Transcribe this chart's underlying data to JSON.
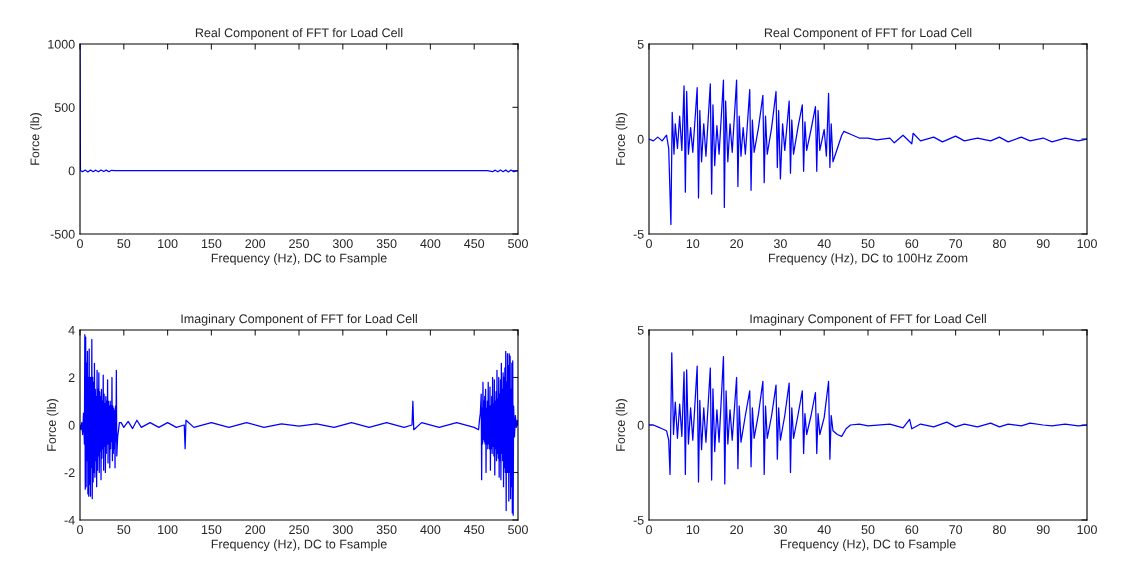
{
  "chart_data": [
    {
      "type": "line",
      "title": "Real Component of FFT for Load Cell",
      "xlabel": "Frequency (Hz), DC to Fsample",
      "ylabel": "Force (lb)",
      "xlim": [
        0,
        500
      ],
      "ylim": [
        -500,
        1000
      ],
      "xticks": [
        0,
        50,
        100,
        150,
        200,
        250,
        300,
        350,
        400,
        450,
        500
      ],
      "yticks": [
        -500,
        0,
        500,
        1000
      ],
      "x": [
        0,
        0.5,
        3,
        6,
        9,
        12,
        15,
        18,
        21,
        24,
        27,
        30,
        33,
        36,
        40,
        100,
        200,
        300,
        400,
        465,
        468,
        471,
        474,
        477,
        480,
        483,
        486,
        489,
        492,
        495,
        498,
        500
      ],
      "series": [
        {
          "color": "#0000ff",
          "values": [
            1000,
            0,
            -8,
            5,
            -10,
            6,
            -8,
            4,
            -9,
            5,
            -7,
            4,
            -8,
            3,
            0,
            0,
            0,
            0,
            0,
            0,
            -3,
            -8,
            4,
            -9,
            5,
            -8,
            6,
            -10,
            5,
            -8,
            -3,
            0
          ]
        }
      ]
    },
    {
      "type": "line",
      "title": "Real Component of FFT for Load Cell",
      "xlabel": "Frequency (Hz), DC to 100Hz Zoom",
      "ylabel": "Force (lb)",
      "xlim": [
        0,
        100
      ],
      "ylim": [
        -5,
        5
      ],
      "xticks": [
        0,
        10,
        20,
        30,
        40,
        50,
        60,
        70,
        80,
        90,
        100
      ],
      "yticks": [
        -5,
        0,
        5
      ],
      "x": [
        0,
        1,
        2,
        3,
        4,
        4.5,
        5,
        5.3,
        5.7,
        6,
        6.5,
        7,
        7.5,
        8,
        8.3,
        8.6,
        9,
        9.5,
        10,
        11,
        11.3,
        11.6,
        12,
        12.5,
        13,
        14,
        14.3,
        14.6,
        15,
        15.5,
        16,
        17,
        17.2,
        17.5,
        18,
        18.5,
        19,
        20,
        20.3,
        20.6,
        21,
        21.5,
        22,
        23,
        23.3,
        23.6,
        24,
        25,
        26,
        26.3,
        26.6,
        27,
        28,
        29,
        29.3,
        29.6,
        30,
        30.5,
        31,
        32,
        32.3,
        32.6,
        33,
        34,
        35,
        35.3,
        35.6,
        36,
        37,
        38,
        38.3,
        38.6,
        39,
        40,
        40.5,
        41,
        41.3,
        41.6,
        42,
        43,
        44,
        44.5,
        46,
        48,
        50,
        52,
        55,
        56,
        58,
        60,
        60.3,
        62,
        65,
        67,
        70,
        72,
        75,
        78,
        80,
        82,
        85,
        87,
        90,
        92,
        95,
        98,
        100
      ],
      "series": [
        {
          "color": "#0000ff",
          "values": [
            0,
            -0.1,
            0.1,
            -0.1,
            0.2,
            -0.5,
            -4.5,
            1.4,
            -0.8,
            0.8,
            -0.5,
            1.2,
            -0.6,
            2.8,
            -2.8,
            2.5,
            -0.8,
            0.6,
            -0.7,
            2.7,
            -3.1,
            1.5,
            -1.2,
            0.8,
            -0.9,
            2.9,
            -2.9,
            1.8,
            -1.4,
            0.7,
            -0.8,
            3.1,
            -3.6,
            2.0,
            -1.2,
            0.8,
            -0.7,
            3.1,
            -2.5,
            1.2,
            -0.9,
            0.6,
            -0.8,
            2.6,
            -2.7,
            1.0,
            -0.7,
            0.6,
            2.3,
            -2.3,
            1.2,
            -0.8,
            0.6,
            2.5,
            -1.5,
            1.5,
            -2.1,
            0.8,
            -0.6,
            2.0,
            -1.8,
            1.0,
            -0.8,
            0.6,
            1.8,
            -1.7,
            0.9,
            -0.6,
            0.5,
            1.7,
            -1.7,
            1.5,
            -0.6,
            0.5,
            -0.9,
            2.4,
            -1.5,
            0.8,
            -1.2,
            -0.5,
            0.2,
            0.4,
            0.25,
            0.05,
            0.05,
            -0.05,
            0.05,
            -0.2,
            0.2,
            -0.25,
            0.3,
            -0.1,
            0.1,
            -0.15,
            0.15,
            -0.1,
            0.05,
            -0.1,
            0.1,
            -0.15,
            0.1,
            -0.1,
            0.05,
            -0.15,
            0.05,
            -0.1,
            0
          ]
        }
      ]
    },
    {
      "type": "line",
      "title": "Imaginary Component of FFT for Load Cell",
      "xlabel": "Frequency (Hz), DC to Fsample",
      "ylabel": "Force (lb)",
      "xlim": [
        0,
        500
      ],
      "ylim": [
        -4,
        4
      ],
      "xticks": [
        0,
        50,
        100,
        150,
        200,
        250,
        300,
        350,
        400,
        450,
        500
      ],
      "yticks": [
        -4,
        -2,
        0,
        2,
        4
      ],
      "x": [
        0,
        1,
        2,
        3,
        4,
        5,
        5.5,
        6,
        6.5,
        7,
        7.5,
        8,
        8.5,
        9,
        9.5,
        10,
        10.5,
        11,
        11.5,
        12,
        12.5,
        13,
        13.5,
        14,
        14.5,
        15,
        15.5,
        16,
        16.5,
        17,
        17.5,
        18,
        18.5,
        19,
        19.5,
        20,
        20.5,
        21,
        21.5,
        22,
        22.5,
        23,
        23.5,
        24,
        24.5,
        25,
        25.5,
        26,
        26.5,
        27,
        27.5,
        28,
        28.5,
        29,
        29.5,
        30,
        30.5,
        31,
        31.5,
        32,
        32.5,
        33,
        33.5,
        34,
        34.5,
        35,
        35.5,
        36,
        36.5,
        37,
        37.5,
        38,
        38.5,
        39,
        39.5,
        40,
        40.5,
        41,
        41.5,
        42,
        43,
        44,
        45,
        47,
        50,
        55,
        60,
        65,
        70,
        80,
        90,
        100,
        110,
        119,
        120,
        121,
        130,
        150,
        170,
        190,
        210,
        230,
        250,
        270,
        290,
        310,
        330,
        350,
        370,
        379,
        380,
        381,
        390,
        410,
        430,
        450,
        455,
        456,
        457,
        458,
        458.5,
        459,
        459.5,
        460,
        460.5,
        461,
        461.5,
        462,
        462.5,
        463,
        463.5,
        464,
        464.5,
        465,
        465.5,
        466,
        466.5,
        467,
        467.5,
        468,
        468.5,
        469,
        469.5,
        470,
        470.5,
        471,
        471.5,
        472,
        472.5,
        473,
        473.5,
        474,
        474.5,
        475,
        475.5,
        476,
        476.5,
        477,
        477.5,
        478,
        478.5,
        479,
        479.5,
        480,
        480.5,
        481,
        481.5,
        482,
        482.5,
        483,
        483.5,
        484,
        484.5,
        485,
        485.5,
        486,
        486.5,
        487,
        487.5,
        488,
        488.5,
        489,
        489.5,
        490,
        490.5,
        491,
        491.5,
        492,
        492.5,
        493,
        493.5,
        494,
        494.5,
        495,
        496,
        497,
        498,
        499,
        500
      ],
      "series": [
        {
          "color": "#0000ff",
          "values": [
            0,
            -0.2,
            0.1,
            -0.4,
            0.5,
            -0.8,
            3.8,
            -2.7,
            3.7,
            -2.6,
            2.6,
            -1.5,
            3.1,
            -2.9,
            2.0,
            -3.0,
            3.2,
            -2.5,
            2.0,
            -3.0,
            2.0,
            -1.8,
            3.6,
            -3.1,
            2.0,
            -2.4,
            1.8,
            -2.0,
            2.6,
            -2.2,
            1.5,
            -1.5,
            1.2,
            -2.6,
            2.3,
            -1.9,
            1.5,
            -1.3,
            2.2,
            -2.0,
            1.4,
            -1.1,
            1.2,
            -2.3,
            1.5,
            -1.4,
            1.0,
            -1.0,
            2.1,
            -1.9,
            1.3,
            -0.9,
            0.9,
            -2.0,
            1.2,
            -1.2,
            1.0,
            -0.8,
            1.9,
            -1.6,
            1.0,
            -0.8,
            0.8,
            -1.8,
            1.0,
            -1.0,
            0.8,
            -0.7,
            2.0,
            -1.5,
            0.8,
            -1.2,
            0.7,
            -1.0,
            0.6,
            -1.8,
            0.8,
            -0.7,
            2.3,
            -1.3,
            -0.5,
            -0.2,
            0.1,
            0.1,
            -0.1,
            0.15,
            -0.15,
            0.2,
            -0.1,
            0.1,
            -0.1,
            0.1,
            -0.1,
            0,
            -1.0,
            0.2,
            -0.1,
            0.1,
            -0.1,
            0.1,
            -0.1,
            0.05,
            -0.05,
            0.05,
            -0.1,
            0.1,
            -0.1,
            0.1,
            -0.1,
            0,
            1.0,
            -0.2,
            0.1,
            -0.1,
            0.1,
            -0.1,
            -0.2,
            0.2,
            0.5,
            1.3,
            -2.3,
            0.7,
            -0.8,
            1.8,
            -0.6,
            1.0,
            -0.7,
            1.2,
            -0.8,
            1.5,
            -2.0,
            0.7,
            -0.8,
            1.0,
            -1.0,
            1.8,
            -0.8,
            0.8,
            -1.0,
            1.6,
            -1.9,
            0.8,
            -1.0,
            1.2,
            -1.2,
            2.0,
            -0.9,
            0.9,
            -1.3,
            1.9,
            -2.1,
            1.0,
            -1.0,
            1.4,
            -1.5,
            2.3,
            -1.2,
            1.1,
            -1.4,
            2.0,
            -2.2,
            1.3,
            -1.5,
            1.9,
            -2.3,
            2.6,
            -1.2,
            1.5,
            -1.5,
            2.2,
            -2.6,
            2.0,
            -1.8,
            2.4,
            -2.0,
            3.1,
            -3.6,
            1.8,
            -2.0,
            3.0,
            -2.0,
            2.5,
            -3.2,
            3.0,
            -2.0,
            2.9,
            -3.1,
            1.5,
            -2.6,
            2.6,
            -3.7,
            2.7,
            -3.8,
            0.8,
            -0.5,
            0.4,
            -0.1,
            0.2,
            0
          ]
        }
      ]
    },
    {
      "type": "line",
      "title": "Imaginary Component of FFT for Load Cell",
      "xlabel": "Frequency (Hz), DC to Fsample",
      "ylabel": "Force (lb)",
      "xlim": [
        0,
        100
      ],
      "ylim": [
        -5,
        5
      ],
      "xticks": [
        0,
        10,
        20,
        30,
        40,
        50,
        60,
        70,
        80,
        90,
        100
      ],
      "yticks": [
        -5,
        0,
        5
      ],
      "x": [
        0,
        1,
        2,
        3,
        4,
        4.5,
        4.8,
        5.2,
        5.6,
        6,
        6.5,
        7,
        7.5,
        8,
        8.3,
        8.6,
        9,
        9.5,
        10,
        11,
        11.3,
        11.6,
        12,
        12.5,
        13,
        14,
        14.3,
        14.6,
        15,
        15.5,
        16,
        17,
        17.3,
        17.6,
        18,
        18.5,
        19,
        20,
        20.3,
        20.6,
        21,
        22,
        23,
        23.3,
        23.6,
        24,
        25,
        26,
        26.3,
        26.6,
        27,
        28,
        29,
        29.3,
        29.6,
        30,
        31,
        32,
        32.3,
        32.6,
        33,
        34,
        35,
        35.3,
        35.6,
        36,
        37,
        38,
        38.3,
        38.6,
        39,
        40,
        41,
        41.3,
        41.6,
        42,
        43,
        44,
        45,
        46,
        48,
        50,
        55,
        58,
        59.5,
        60,
        62,
        65,
        68,
        70,
        72,
        75,
        78,
        80,
        82,
        85,
        87,
        90,
        92,
        95,
        98,
        100
      ],
      "series": [
        {
          "color": "#0000ff",
          "values": [
            0,
            0,
            -0.1,
            -0.2,
            -0.3,
            -0.8,
            -2.6,
            3.8,
            -0.5,
            1.2,
            -0.7,
            1.1,
            -0.6,
            2.8,
            -2.6,
            2.9,
            -1.0,
            0.9,
            -0.8,
            3.1,
            -3.0,
            1.3,
            -1.3,
            0.9,
            -0.9,
            3.0,
            -2.9,
            1.9,
            -1.4,
            0.8,
            -0.9,
            3.6,
            -3.1,
            1.8,
            -1.0,
            0.8,
            -0.8,
            2.5,
            -2.3,
            1.0,
            -0.9,
            0.5,
            1.8,
            -2.2,
            0.9,
            -0.7,
            0.6,
            2.3,
            -2.6,
            1.0,
            -0.7,
            0.5,
            2.1,
            -1.8,
            0.9,
            -0.8,
            0.5,
            2.2,
            -2.5,
            0.9,
            -0.7,
            0.5,
            1.8,
            -1.5,
            0.6,
            -0.5,
            0.5,
            1.7,
            -1.5,
            0.6,
            -0.5,
            0.4,
            2.3,
            -1.8,
            0.5,
            -0.3,
            -0.5,
            -0.6,
            -0.2,
            0,
            0.05,
            -0.05,
            0.05,
            -0.15,
            0.3,
            -0.2,
            0.05,
            -0.1,
            0.15,
            -0.1,
            0.05,
            -0.1,
            0.1,
            -0.1,
            0.05,
            -0.05,
            0.1,
            0,
            -0.05,
            0.05,
            -0.05,
            0
          ]
        }
      ]
    }
  ]
}
